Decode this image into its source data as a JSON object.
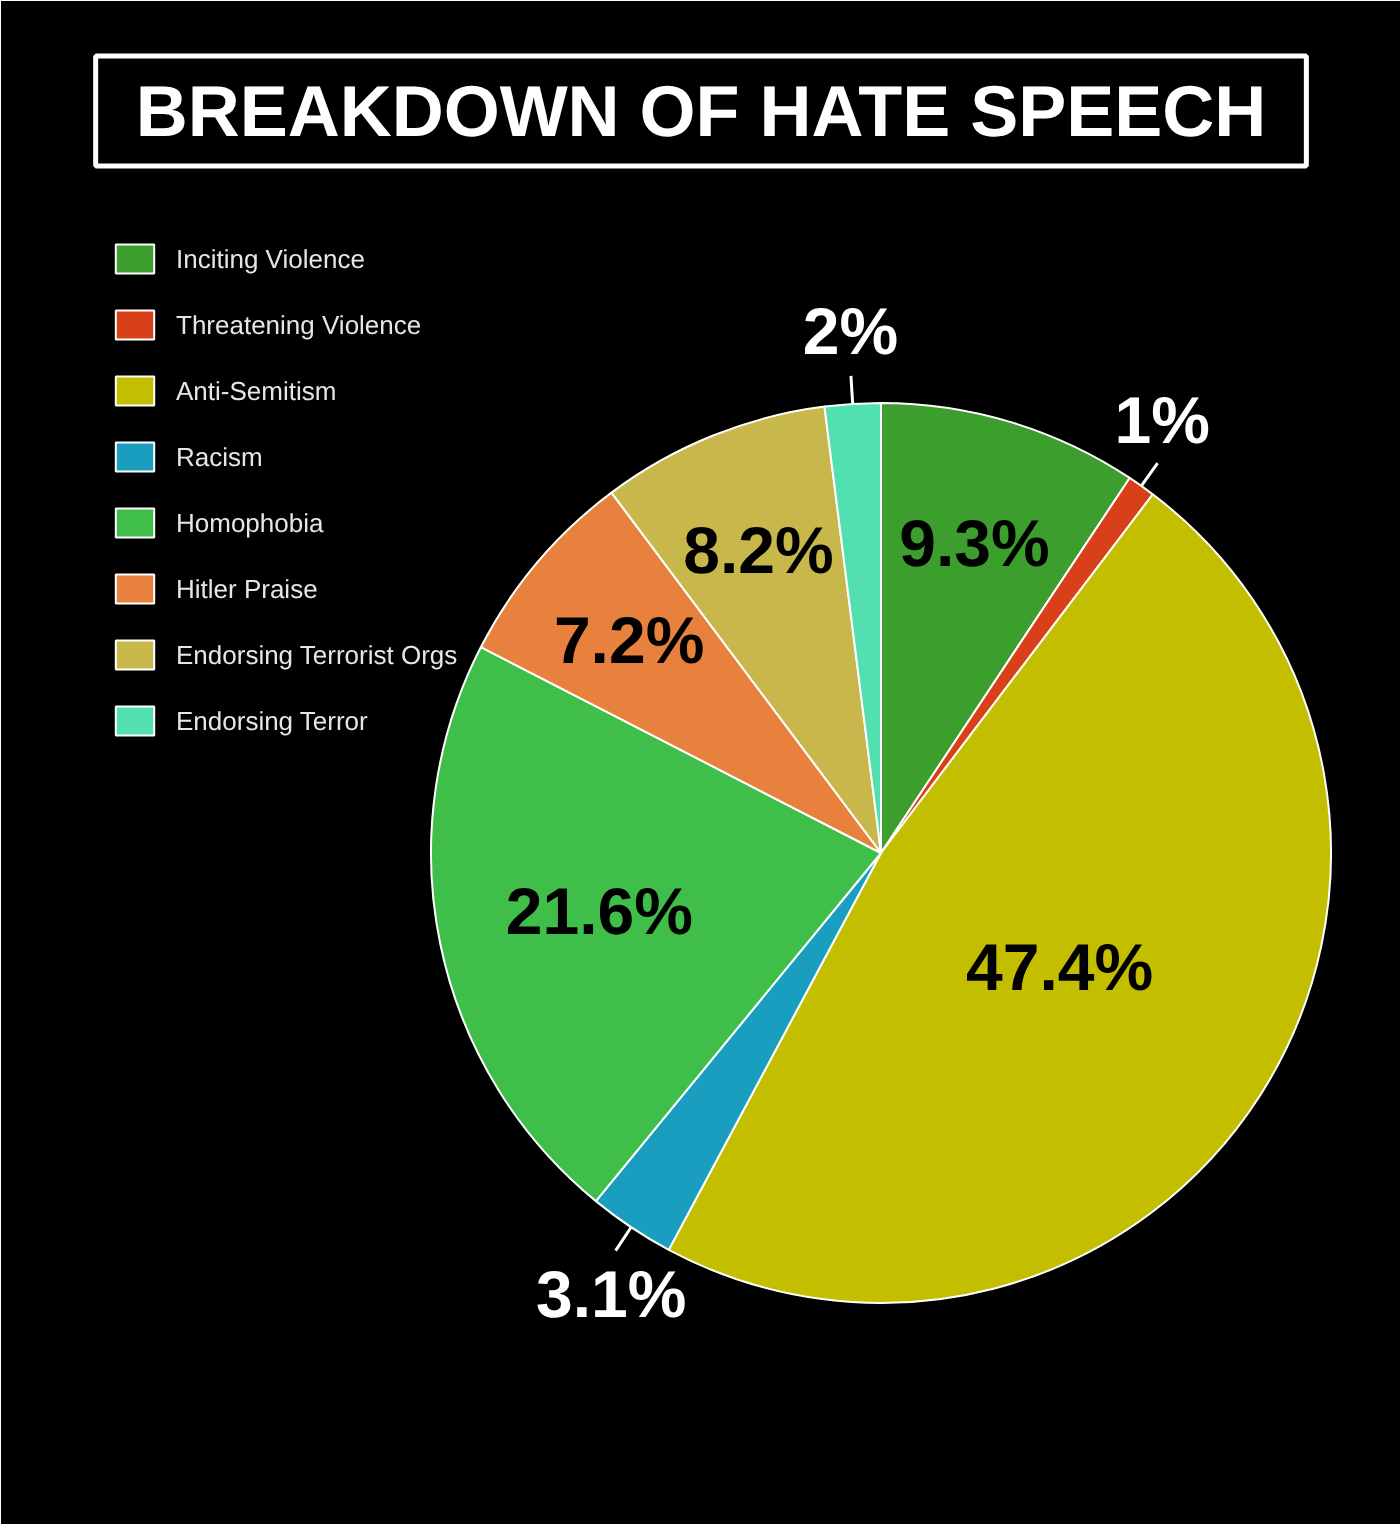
{
  "chart_data": {
    "type": "pie",
    "title": "BREAKDOWN OF HATE SPEECH",
    "categories": [
      "Inciting Violence",
      "Threatening Violence",
      "Anti-Semitism",
      "Racism",
      "Homophobia",
      "Hitler Praise",
      "Endorsing Terrorist Orgs",
      "Endorsing Terror"
    ],
    "values": [
      9.3,
      1,
      47.4,
      3.1,
      21.6,
      7.2,
      8.2,
      2
    ],
    "colors": [
      "#3c9e2c",
      "#d8401a",
      "#c4be00",
      "#1a9ec0",
      "#40be4a",
      "#e8803e",
      "#c8b84c",
      "#52e0b0"
    ],
    "value_labels": [
      "9.3%",
      "1%",
      "47.4%",
      "3.1%",
      "21.6%",
      "7.2%",
      "8.2%",
      "2%"
    ],
    "legend": "top left"
  }
}
